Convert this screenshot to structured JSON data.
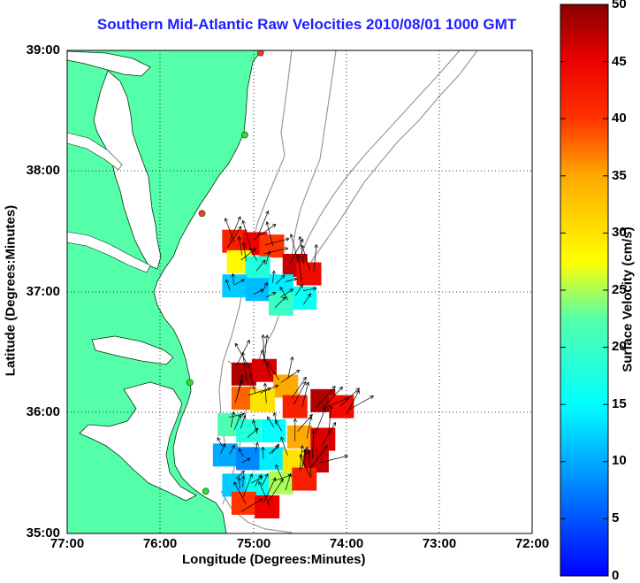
{
  "title": "Southern Mid-Atlantic Raw Velocities 2010/08/01 1000 GMT",
  "x_axis": {
    "label": "Longitude (Degrees:Minutes)",
    "ticks": [
      "77:00",
      "76:00",
      "75:00",
      "74:00",
      "73:00",
      "72:00"
    ],
    "range": [
      -77,
      -72
    ]
  },
  "y_axis": {
    "label": "Latitude (Degrees:Minutes)",
    "ticks": [
      "39:00",
      "38:00",
      "37:00",
      "36:00",
      "35:00"
    ],
    "range": [
      35,
      39
    ]
  },
  "colorbar": {
    "label": "Surface Velocity (cm/s)",
    "ticks": [
      "50",
      "45",
      "40",
      "35",
      "30",
      "25",
      "20",
      "15",
      "10",
      "5",
      "0"
    ],
    "range": [
      0,
      50
    ]
  },
  "colors": {
    "land": "#55ffaa",
    "water": "#ffffff",
    "title": "#1d1dff",
    "station_active": "#33dd33",
    "station_inactive": "#ff3333",
    "bathymetry": "#999999"
  },
  "stations": [
    {
      "lon": -74.92,
      "lat": 38.98,
      "status": "inactive"
    },
    {
      "lon": -75.09,
      "lat": 38.3,
      "status": "active"
    },
    {
      "lon": -75.55,
      "lat": 37.65,
      "status": "inactive"
    },
    {
      "lon": -75.68,
      "lat": 36.25,
      "status": "active"
    },
    {
      "lon": -75.51,
      "lat": 35.35,
      "status": "active"
    }
  ],
  "chart_data": {
    "type": "heatmap",
    "title": "Southern Mid-Atlantic Raw Velocities 2010/08/01 1000 GMT",
    "xlabel": "Longitude (Degrees:Minutes)",
    "ylabel": "Latitude (Degrees:Minutes)",
    "xlim": [
      -77,
      -72
    ],
    "ylim": [
      35,
      39
    ],
    "colorbar_label": "Surface Velocity (cm/s)",
    "colorbar_range": [
      0,
      50
    ],
    "grid": true,
    "velocity_cells": [
      {
        "lon": -75.2,
        "lat": 37.42,
        "speed": 42
      },
      {
        "lon": -74.98,
        "lat": 37.4,
        "speed": 45
      },
      {
        "lon": -74.8,
        "lat": 37.38,
        "speed": 40
      },
      {
        "lon": -74.55,
        "lat": 37.22,
        "speed": 47
      },
      {
        "lon": -74.4,
        "lat": 37.15,
        "speed": 44
      },
      {
        "lon": -75.15,
        "lat": 37.25,
        "speed": 28
      },
      {
        "lon": -74.95,
        "lat": 37.2,
        "speed": 18
      },
      {
        "lon": -75.2,
        "lat": 37.05,
        "speed": 12
      },
      {
        "lon": -74.95,
        "lat": 37.02,
        "speed": 11
      },
      {
        "lon": -74.7,
        "lat": 37.05,
        "speed": 14
      },
      {
        "lon": -74.45,
        "lat": 36.95,
        "speed": 16
      },
      {
        "lon": -74.7,
        "lat": 36.9,
        "speed": 20
      },
      {
        "lon": -75.1,
        "lat": 36.32,
        "speed": 48
      },
      {
        "lon": -74.88,
        "lat": 36.35,
        "speed": 46
      },
      {
        "lon": -74.65,
        "lat": 36.22,
        "speed": 35
      },
      {
        "lon": -75.1,
        "lat": 36.12,
        "speed": 38
      },
      {
        "lon": -74.9,
        "lat": 36.1,
        "speed": 30
      },
      {
        "lon": -74.55,
        "lat": 36.05,
        "speed": 42
      },
      {
        "lon": -74.25,
        "lat": 36.1,
        "speed": 48
      },
      {
        "lon": -74.05,
        "lat": 36.05,
        "speed": 44
      },
      {
        "lon": -75.25,
        "lat": 35.9,
        "speed": 22
      },
      {
        "lon": -75.05,
        "lat": 35.85,
        "speed": 18
      },
      {
        "lon": -74.78,
        "lat": 35.85,
        "speed": 15
      },
      {
        "lon": -74.5,
        "lat": 35.8,
        "speed": 35
      },
      {
        "lon": -74.25,
        "lat": 35.78,
        "speed": 46
      },
      {
        "lon": -75.3,
        "lat": 35.65,
        "speed": 10
      },
      {
        "lon": -75.05,
        "lat": 35.62,
        "speed": 8
      },
      {
        "lon": -74.8,
        "lat": 35.62,
        "speed": 14
      },
      {
        "lon": -74.55,
        "lat": 35.6,
        "speed": 30
      },
      {
        "lon": -74.32,
        "lat": 35.6,
        "speed": 47
      },
      {
        "lon": -75.2,
        "lat": 35.4,
        "speed": 12
      },
      {
        "lon": -74.95,
        "lat": 35.4,
        "speed": 16
      },
      {
        "lon": -74.7,
        "lat": 35.42,
        "speed": 25
      },
      {
        "lon": -74.45,
        "lat": 35.45,
        "speed": 42
      },
      {
        "lon": -75.1,
        "lat": 35.25,
        "speed": 40
      },
      {
        "lon": -74.85,
        "lat": 35.22,
        "speed": 45
      }
    ]
  }
}
